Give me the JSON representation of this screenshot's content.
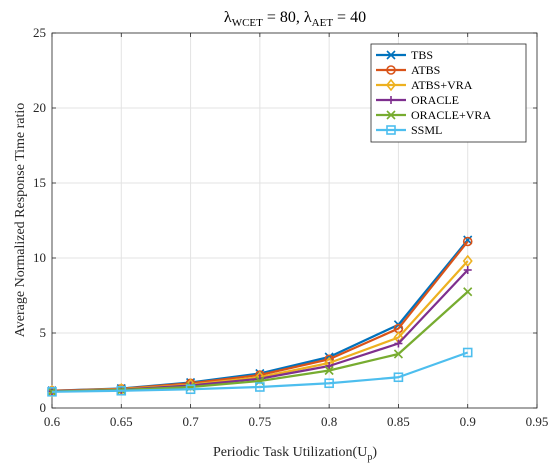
{
  "chart_data": {
    "type": "line",
    "title": {
      "parts": [
        {
          "symbol": "λ",
          "sub": "WCET",
          "text": " = 80, "
        },
        {
          "symbol": "λ",
          "sub": "AET",
          "text": " = 40"
        }
      ]
    },
    "xlabel": {
      "text": "Periodic Task Utilization(U",
      "sub": "p",
      "end": ")"
    },
    "ylabel": "Average Normalized Response Time ratio",
    "xlim": [
      0.6,
      0.95
    ],
    "ylim": [
      0,
      25
    ],
    "xticks": [
      "0.6",
      "0.65",
      "0.7",
      "0.75",
      "0.8",
      "0.85",
      "0.9",
      "0.95"
    ],
    "yticks": [
      "0",
      "5",
      "10",
      "15",
      "20",
      "25"
    ],
    "grid": true,
    "legend_position": "top-right",
    "x": [
      0.6,
      0.65,
      0.7,
      0.75,
      0.8,
      0.85,
      0.9
    ],
    "series": [
      {
        "name": "TBS",
        "color": "#0072BD",
        "marker": "x",
        "values": [
          1.15,
          1.3,
          1.7,
          2.3,
          3.4,
          5.55,
          11.2
        ]
      },
      {
        "name": "ATBS",
        "color": "#D95319",
        "marker": "circle",
        "values": [
          1.15,
          1.28,
          1.65,
          2.2,
          3.25,
          5.3,
          11.1
        ]
      },
      {
        "name": "ATBS+VRA",
        "color": "#EDB120",
        "marker": "diamond",
        "values": [
          1.12,
          1.25,
          1.55,
          2.05,
          3.0,
          4.7,
          9.8
        ]
      },
      {
        "name": "ORACLE",
        "color": "#7E2F8E",
        "marker": "plus",
        "values": [
          1.12,
          1.22,
          1.5,
          1.95,
          2.8,
          4.3,
          9.2
        ]
      },
      {
        "name": "ORACLE+VRA",
        "color": "#77AC30",
        "marker": "x",
        "values": [
          1.1,
          1.2,
          1.4,
          1.8,
          2.5,
          3.6,
          7.75
        ]
      },
      {
        "name": "SSML",
        "color": "#4DBEEE",
        "marker": "square",
        "values": [
          1.08,
          1.15,
          1.25,
          1.4,
          1.65,
          2.05,
          3.7
        ]
      }
    ]
  }
}
